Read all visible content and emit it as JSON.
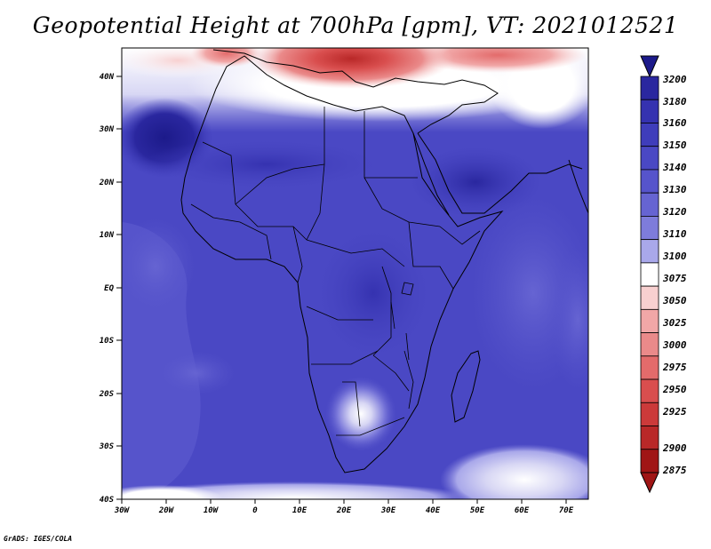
{
  "title": "Geopotential Height at 700hPa [gpm], VT: 2021012521",
  "credit": "GrADS: IGES/COLA",
  "map": {
    "region": "Africa",
    "lon_range": [
      -30,
      75
    ],
    "lat_range": [
      -40,
      45
    ],
    "lon_ticks": [
      "30W",
      "20W",
      "10W",
      "0",
      "10E",
      "20E",
      "30E",
      "40E",
      "50E",
      "60E",
      "70E"
    ],
    "lat_ticks": [
      "40N",
      "30N",
      "20N",
      "10N",
      "EQ",
      "10S",
      "20S",
      "30S",
      "40S"
    ]
  },
  "colorbar": {
    "levels": [
      "3200",
      "3180",
      "3160",
      "3150",
      "3140",
      "3130",
      "3120",
      "3110",
      "3100",
      "3075",
      "3050",
      "3025",
      "3000",
      "2975",
      "2950",
      "2925",
      "2900",
      "2875"
    ],
    "colors": [
      "#1c1a8a",
      "#2a279f",
      "#3532b0",
      "#3f3dbb",
      "#4a48c4",
      "#5654cb",
      "#6664d2",
      "#7e7cdb",
      "#a9a8ea",
      "#ffffff",
      "#f8d0d0",
      "#f1a7a7",
      "#ea8a8a",
      "#e36b6b",
      "#d94e4e",
      "#cc3a3a",
      "#b92828",
      "#a01515"
    ]
  }
}
